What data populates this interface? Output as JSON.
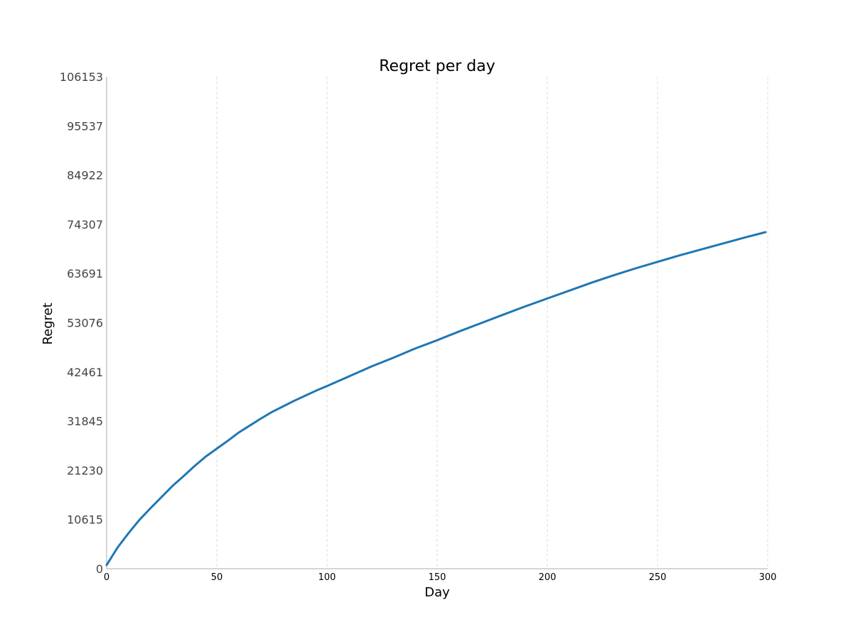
{
  "chart_data": {
    "type": "line",
    "title": "Regret per day",
    "xlabel": "Day",
    "ylabel": "Regret",
    "xlim": [
      0,
      300
    ],
    "ylim": [
      0,
      106153
    ],
    "x_ticks": [
      0,
      50,
      100,
      150,
      200,
      250,
      300
    ],
    "y_ticks": [
      0,
      10615,
      21230,
      31845,
      42461,
      53076,
      63691,
      74307,
      84922,
      95537,
      106153
    ],
    "grid": "vertical dashed",
    "legend": "none",
    "series": [
      {
        "color": "#1f77b4",
        "x": [
          0,
          5,
          10,
          15,
          20,
          25,
          30,
          35,
          40,
          45,
          50,
          55,
          60,
          65,
          70,
          75,
          80,
          85,
          90,
          95,
          100,
          110,
          120,
          130,
          140,
          150,
          160,
          170,
          180,
          190,
          200,
          210,
          220,
          230,
          240,
          250,
          260,
          270,
          280,
          290,
          299
        ],
        "y": [
          800,
          4600,
          7700,
          10600,
          13100,
          15500,
          17900,
          20000,
          22200,
          24200,
          25900,
          27600,
          29400,
          30900,
          32400,
          33800,
          35000,
          36200,
          37300,
          38400,
          39400,
          41500,
          43600,
          45500,
          47500,
          49300,
          51200,
          53000,
          54800,
          56600,
          58300,
          60000,
          61700,
          63300,
          64800,
          66200,
          67600,
          68900,
          70200,
          71500,
          72600
        ]
      }
    ]
  }
}
